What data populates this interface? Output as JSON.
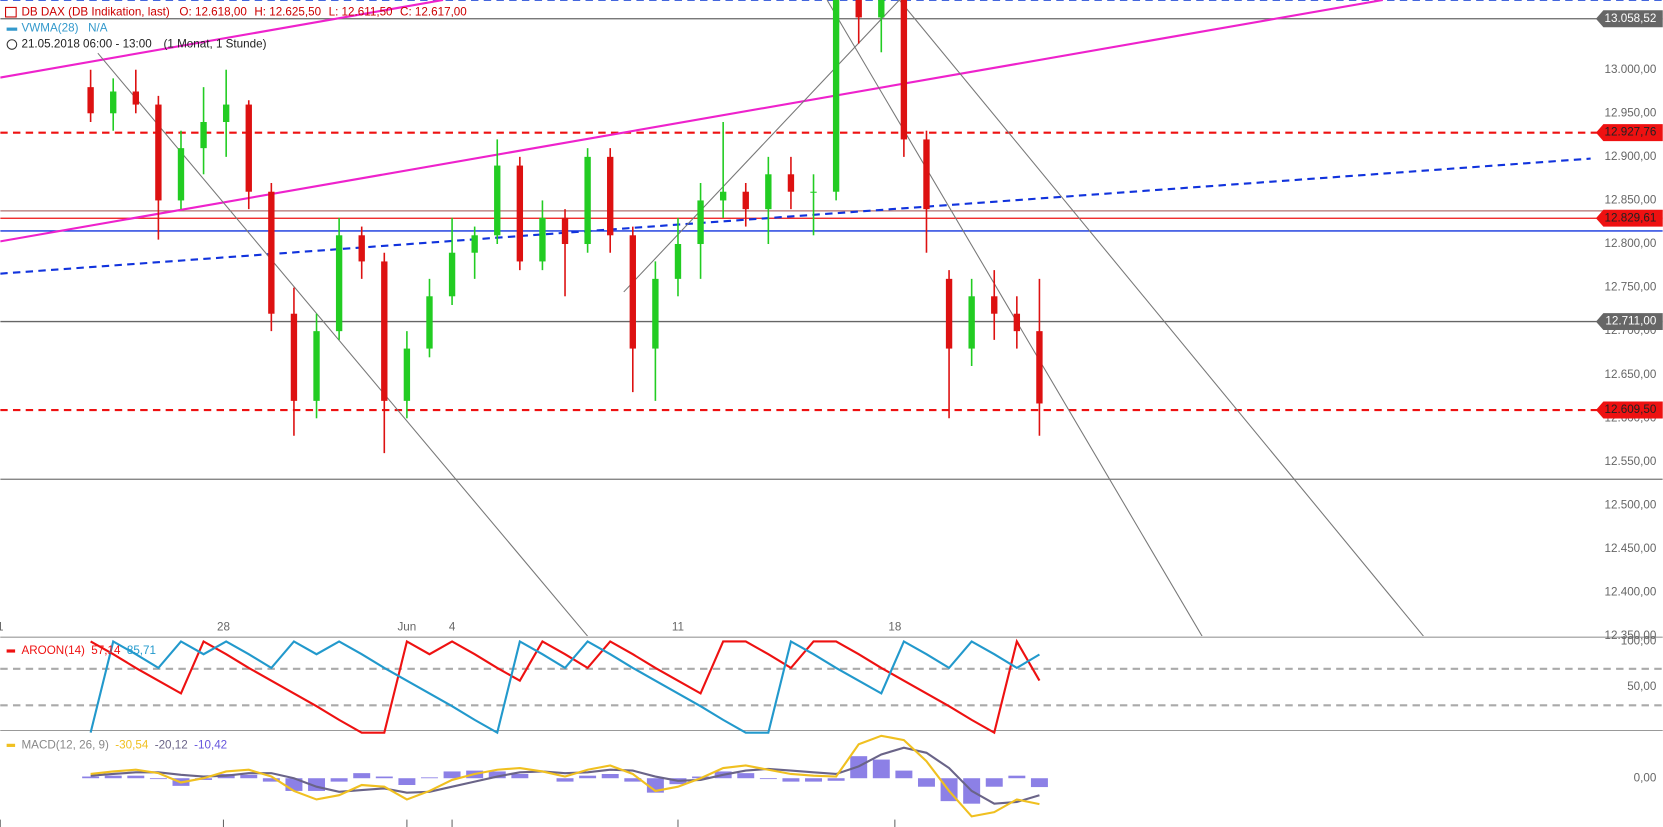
{
  "header": {
    "instrument": "DB DAX (DB Indikation, last)",
    "quote": [
      "O: 12.618,00",
      "H: 12.625,50",
      "L: 12.611,50",
      "C: 12.617,00"
    ],
    "indicator": "VWMA(28)",
    "indicator_value": "N/A",
    "period": "21.05.2018 06:00 - 13:00",
    "interval": "(1 Monat, 1 Stunde)"
  },
  "chart_data": [
    {
      "type": "candlestick",
      "x": [
        2,
        2.5,
        3,
        3.5,
        4,
        4.5,
        5,
        5.5,
        6,
        6.5,
        7,
        7.5,
        8,
        8.5,
        9,
        9.5,
        10,
        10.5,
        11,
        11.5,
        12,
        12.5,
        13,
        13.5,
        14,
        14.5,
        15,
        15.5,
        16,
        16.5,
        17,
        17.5,
        18,
        18.5,
        19,
        19.5,
        20,
        20.5,
        21,
        21.5,
        22,
        22.5,
        23
      ],
      "open": [
        12980,
        12950,
        12975,
        12960,
        12850,
        12910,
        12940,
        12960,
        12860,
        12720,
        12620,
        12700,
        12810,
        12780,
        12620,
        12680,
        12740,
        12790,
        12810,
        12890,
        12780,
        12830,
        12800,
        12900,
        12810,
        12680,
        12760,
        12800,
        12850,
        12860,
        12840,
        12880,
        12860,
        12860,
        13080,
        13060,
        13090,
        12920,
        12760,
        12680,
        12740,
        12720,
        12700
      ],
      "high": [
        13000,
        12990,
        13000,
        12970,
        12930,
        12980,
        13000,
        12965,
        12870,
        12750,
        12720,
        12830,
        12820,
        12790,
        12700,
        12760,
        12830,
        12820,
        12920,
        12900,
        12850,
        12840,
        12910,
        12910,
        12820,
        12780,
        12830,
        12870,
        12940,
        12870,
        12900,
        12900,
        12880,
        13100,
        13100,
        13100,
        13100,
        12930,
        12770,
        12760,
        12770,
        12740,
        12760
      ],
      "low": [
        12940,
        12930,
        12950,
        12805,
        12840,
        12880,
        12900,
        12840,
        12700,
        12580,
        12600,
        12690,
        12760,
        12560,
        12600,
        12670,
        12730,
        12760,
        12800,
        12770,
        12770,
        12740,
        12790,
        12790,
        12630,
        12620,
        12740,
        12760,
        12830,
        12820,
        12800,
        12840,
        12810,
        12850,
        13030,
        13020,
        12900,
        12790,
        12600,
        12660,
        12690,
        12680,
        12580
      ],
      "close": [
        12950,
        12975,
        12960,
        12850,
        12910,
        12940,
        12960,
        12860,
        12720,
        12620,
        12700,
        12810,
        12780,
        12620,
        12680,
        12740,
        12790,
        12810,
        12890,
        12780,
        12830,
        12800,
        12900,
        12810,
        12680,
        12760,
        12800,
        12850,
        12860,
        12840,
        12880,
        12860,
        12860,
        13080,
        13060,
        13090,
        12920,
        12840,
        12680,
        12740,
        12720,
        12700,
        12617
      ],
      "up_color": "#22cc22",
      "down_color": "#dd1111",
      "xlim": [
        0,
        35.2
      ],
      "ylim": [
        12350,
        13080
      ],
      "xticks": [
        {
          "value": 0,
          "label": "1"
        },
        {
          "value": 4.94,
          "label": "28"
        },
        {
          "value": 9,
          "label": "Jun"
        },
        {
          "value": 10,
          "label": "4"
        },
        {
          "value": 15,
          "label": "11"
        },
        {
          "value": 19.8,
          "label": "18"
        }
      ],
      "yticks": [
        {
          "value": 12350,
          "label": "12.350,00"
        },
        {
          "value": 12400,
          "label": "12.400,00"
        },
        {
          "value": 12450,
          "label": "12.450,00"
        },
        {
          "value": 12500,
          "label": "12.500,00"
        },
        {
          "value": 12550,
          "label": "12.550,00"
        },
        {
          "value": 12600,
          "label": "12.600,00"
        },
        {
          "value": 12650,
          "label": "12.650,00"
        },
        {
          "value": 12700,
          "label": "12.700,00"
        },
        {
          "value": 12750,
          "label": "12.750,00"
        },
        {
          "value": 12800,
          "label": "12.800,00"
        },
        {
          "value": 12850,
          "label": "12.850,00"
        },
        {
          "value": 12900,
          "label": "12.900,00"
        },
        {
          "value": 12950,
          "label": "12.950,00"
        },
        {
          "value": 13000,
          "label": "13.000,00"
        }
      ],
      "levels": [
        {
          "value": 13080,
          "color": "#4466dd",
          "dash": true
        },
        {
          "value": 13058.52,
          "label": "13.058,52",
          "color": "#666666",
          "dash": false
        },
        {
          "value": 12927.76,
          "label": "12.927,76",
          "color": "#ee1111",
          "dash": true
        },
        {
          "value": 12838,
          "color": "#b07070",
          "dash": false
        },
        {
          "value": 12829.61,
          "label": "12.829,61",
          "color": "#ee1111",
          "dash": false
        },
        {
          "value": 12815,
          "color": "#1133dd",
          "dash": false
        },
        {
          "value": 12711,
          "label": "12.711,00",
          "color": "#666666",
          "dash": false
        },
        {
          "value": 12609.5,
          "label": "12.609,50",
          "color": "#ee1111",
          "dash": true
        },
        {
          "value": 12530,
          "color": "#777777",
          "dash": false
        }
      ],
      "trend_lines": [
        {
          "x": [
            0,
            30.6
          ],
          "y": [
            12803,
            13080
          ],
          "color": "#ee22cc",
          "dash": false
        },
        {
          "x": [
            0,
            9.8
          ],
          "y": [
            12991,
            13080
          ],
          "color": "#ee22cc",
          "dash": false
        },
        {
          "x": [
            0,
            35.2
          ],
          "y": [
            12766,
            12898
          ],
          "color": "#1133dd",
          "dash": true
        },
        {
          "x": [
            2.16,
            13
          ],
          "y": [
            13019,
            12350
          ],
          "color": "#777777",
          "dash": false
        },
        {
          "x": [
            19.9,
            31.5
          ],
          "y": [
            13080,
            12350
          ],
          "color": "#777777",
          "dash": false
        },
        {
          "x": [
            13.8,
            19.9
          ],
          "y": [
            12745,
            13080
          ],
          "color": "#777777",
          "dash": false
        },
        {
          "x": [
            18.3,
            26.6
          ],
          "y": [
            13080,
            12350
          ],
          "color": "#777777",
          "dash": false
        }
      ]
    },
    {
      "type": "line",
      "label": "AROON(14)",
      "readouts": [
        "57,14",
        "85,71"
      ],
      "x": [
        2,
        2.5,
        3,
        3.5,
        4,
        4.5,
        5,
        5.5,
        6,
        6.5,
        7,
        7.5,
        8,
        8.5,
        9,
        9.5,
        10,
        10.5,
        11,
        11.5,
        12,
        12.5,
        13,
        13.5,
        14,
        14.5,
        15,
        15.5,
        16,
        16.5,
        17,
        17.5,
        18,
        18.5,
        19,
        19.5,
        20,
        20.5,
        21,
        21.5,
        22,
        22.5,
        23
      ],
      "series": [
        {
          "color": "#ee1111",
          "values": [
            100,
            86,
            71,
            57,
            43,
            100,
            86,
            71,
            57,
            43,
            29,
            14,
            0,
            0,
            100,
            86,
            100,
            86,
            71,
            57,
            100,
            86,
            71,
            100,
            86,
            71,
            57,
            43,
            100,
            100,
            86,
            71,
            100,
            100,
            86,
            71,
            57,
            43,
            29,
            14,
            0,
            100,
            57.14
          ]
        },
        {
          "color": "#2299cc",
          "values": [
            0,
            100,
            86,
            71,
            100,
            86,
            100,
            86,
            71,
            100,
            86,
            100,
            86,
            71,
            57,
            43,
            29,
            14,
            0,
            100,
            86,
            71,
            100,
            86,
            71,
            57,
            43,
            29,
            14,
            0,
            0,
            100,
            86,
            71,
            57,
            43,
            100,
            86,
            71,
            100,
            86,
            71,
            85.71
          ]
        }
      ],
      "xlim": [
        0,
        35.2
      ],
      "ylim": [
        0,
        100
      ],
      "yticks": [
        {
          "value": 100,
          "label": "100,00"
        },
        {
          "value": 50,
          "label": "50,00"
        }
      ],
      "levels": [
        {
          "value": 70,
          "color": "#aaaaaa",
          "dash": true
        },
        {
          "value": 30,
          "color": "#aaaaaa",
          "dash": true
        }
      ]
    },
    {
      "type": "macd",
      "label": "MACD(12, 26, 9)",
      "readouts": [
        "-30,54",
        "-20,12",
        "-10,42"
      ],
      "x": [
        2,
        2.5,
        3,
        3.5,
        4,
        4.5,
        5,
        5.5,
        6,
        6.5,
        7,
        7.5,
        8,
        8.5,
        9,
        9.5,
        10,
        10.5,
        11,
        11.5,
        12,
        12.5,
        13,
        13.5,
        14,
        14.5,
        15,
        15.5,
        16,
        16.5,
        17,
        17.5,
        18,
        18.5,
        19,
        19.5,
        20,
        20.5,
        21,
        21.5,
        22,
        22.5,
        23
      ],
      "series": [
        {
          "color": "#f0c020",
          "values": [
            5,
            8,
            10,
            6,
            -5,
            0,
            8,
            10,
            2,
            -15,
            -25,
            -20,
            -8,
            -10,
            -25,
            -15,
            -2,
            5,
            10,
            12,
            8,
            2,
            10,
            15,
            5,
            -15,
            -10,
            0,
            12,
            15,
            10,
            5,
            3,
            2,
            40,
            50,
            45,
            20,
            -15,
            -45,
            -40,
            -25,
            -30.54
          ]
        },
        {
          "color": "#6a6488",
          "values": [
            3,
            5,
            7,
            7,
            4,
            2,
            3,
            6,
            6,
            0,
            -10,
            -16,
            -14,
            -12,
            -17,
            -16,
            -10,
            -4,
            2,
            7,
            8,
            6,
            7,
            10,
            9,
            2,
            -3,
            -2,
            4,
            9,
            11,
            9,
            7,
            5,
            14,
            28,
            36,
            30,
            12,
            -15,
            -30,
            -28,
            -20.12
          ]
        },
        {
          "color": "#6655dd",
          "values": [
            2,
            3,
            3,
            -1,
            -9,
            -2,
            5,
            4,
            -4,
            -15,
            -15,
            -4,
            6,
            2,
            -8,
            1,
            8,
            9,
            8,
            5,
            0,
            -4,
            3,
            5,
            -4,
            -17,
            -7,
            2,
            8,
            6,
            -1,
            -4,
            -4,
            -3,
            26,
            22,
            9,
            -10,
            -27,
            -30,
            -10,
            3,
            -10.42
          ]
        }
      ],
      "xlim": [
        0,
        35.2
      ],
      "ylim": [
        -55,
        55
      ],
      "yticks": [
        {
          "value": 0,
          "label": "0,00"
        }
      ]
    }
  ]
}
